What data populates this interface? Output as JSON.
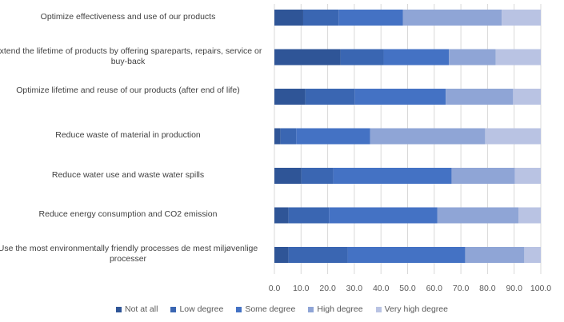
{
  "chart_data": {
    "type": "bar",
    "orientation": "horizontal",
    "stacked": true,
    "categories": [
      "Optimize effectiveness and use of our products",
      "Extend the lifetime of products by offering spareparts, repairs, service or buy-back",
      "Optimize lifetime and reuse of our products (after end of life)",
      "Reduce waste of material in production",
      "Reduce water use and waste water spills",
      "Reduce energy consumption and CO2 emission",
      "Use the most environmentally friendly processes de mest miljøvenlige processer"
    ],
    "series": [
      {
        "name": "Not at all",
        "color": "#2f5597",
        "values": [
          10.8,
          24.8,
          11.6,
          2.3,
          10.1,
          5.3,
          5.3
        ]
      },
      {
        "name": "Low degree",
        "color": "#3a66b2",
        "values": [
          13.3,
          16.2,
          18.5,
          5.9,
          12.0,
          15.2,
          22.2
        ]
      },
      {
        "name": "Some degree",
        "color": "#4472c4",
        "values": [
          24.1,
          24.5,
          34.2,
          27.7,
          44.4,
          40.7,
          44.1
        ]
      },
      {
        "name": "High degree",
        "color": "#8fa5d6",
        "values": [
          37.1,
          17.6,
          25.3,
          43.2,
          23.8,
          30.4,
          22.2
        ]
      },
      {
        "name": "Very high degree",
        "color": "#b9c3e3",
        "values": [
          14.7,
          16.9,
          10.4,
          20.9,
          9.7,
          8.4,
          6.2
        ]
      }
    ],
    "xlim": [
      0,
      100
    ],
    "xticks": [
      "0.0",
      "10.0",
      "20.0",
      "30.0",
      "40.0",
      "50.0",
      "60.0",
      "70.0",
      "80.0",
      "90.0",
      "100.0"
    ],
    "grid": true,
    "legend": "bottom"
  }
}
